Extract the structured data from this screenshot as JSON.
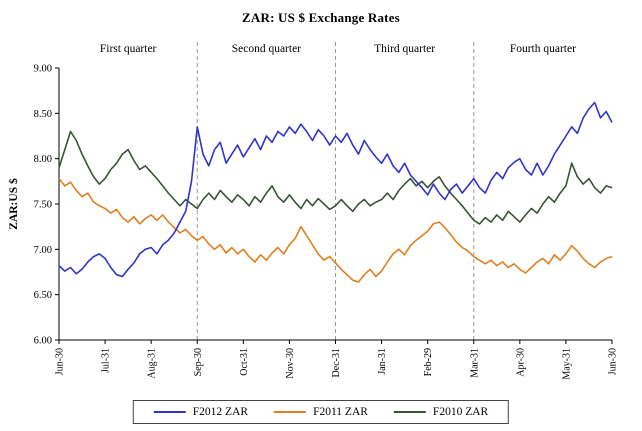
{
  "chart_data": {
    "type": "line",
    "title": "ZAR: US $ Exchange Rates",
    "ylabel": "ZAR:US $",
    "ylim": [
      6.0,
      9.0
    ],
    "y_tick_labels": [
      "6.00",
      "6.50",
      "7.00",
      "7.50",
      "8.00",
      "8.50",
      "9.00"
    ],
    "x_tick_labels": [
      "Jun-30",
      "Jul-31",
      "Aug-31",
      "Sep-30",
      "Oct-31",
      "Nov-30",
      "Dec-31",
      "Jan-31",
      "Feb-29",
      "Mar-31",
      "Apr-30",
      "May-31",
      "Jun-30"
    ],
    "quarter_labels": [
      "First quarter",
      "Second quarter",
      "Third quarter",
      "Fourth quarter"
    ],
    "quarter_dividers_month_index": [
      3,
      6,
      9
    ],
    "grid": "off",
    "legend_position": "bottom",
    "divider_color": "#999999",
    "axis_color": "#000000",
    "points_per_month": 8,
    "series": [
      {
        "name": "F2012 ZAR",
        "color": "#3333cc",
        "values": [
          6.82,
          6.76,
          6.8,
          6.73,
          6.78,
          6.86,
          6.92,
          6.95,
          6.9,
          6.8,
          6.72,
          6.7,
          6.78,
          6.85,
          6.95,
          7.0,
          7.02,
          6.95,
          7.05,
          7.1,
          7.18,
          7.3,
          7.42,
          7.75,
          8.35,
          8.05,
          7.92,
          8.1,
          8.18,
          7.95,
          8.05,
          8.15,
          8.02,
          8.12,
          8.22,
          8.1,
          8.25,
          8.18,
          8.3,
          8.25,
          8.35,
          8.28,
          8.38,
          8.3,
          8.2,
          8.32,
          8.25,
          8.15,
          8.25,
          8.18,
          8.28,
          8.15,
          8.05,
          8.2,
          8.1,
          8.02,
          7.95,
          8.05,
          7.92,
          7.85,
          7.95,
          7.82,
          7.75,
          7.68,
          7.6,
          7.72,
          7.62,
          7.55,
          7.66,
          7.72,
          7.62,
          7.7,
          7.78,
          7.68,
          7.62,
          7.76,
          7.85,
          7.78,
          7.9,
          7.96,
          8.0,
          7.88,
          7.82,
          7.95,
          7.82,
          7.92,
          8.05,
          8.15,
          8.25,
          8.35,
          8.28,
          8.45,
          8.55,
          8.62,
          8.45,
          8.52,
          8.4
        ]
      },
      {
        "name": "F2011 ZAR",
        "color": "#e07f1f",
        "values": [
          7.78,
          7.7,
          7.74,
          7.65,
          7.58,
          7.62,
          7.52,
          7.48,
          7.45,
          7.4,
          7.44,
          7.35,
          7.3,
          7.36,
          7.28,
          7.34,
          7.38,
          7.32,
          7.38,
          7.3,
          7.24,
          7.18,
          7.22,
          7.15,
          7.1,
          7.14,
          7.06,
          7.0,
          7.05,
          6.96,
          7.02,
          6.95,
          7.0,
          6.92,
          6.86,
          6.94,
          6.88,
          6.96,
          7.02,
          6.95,
          7.05,
          7.12,
          7.25,
          7.15,
          7.05,
          6.95,
          6.88,
          6.92,
          6.85,
          6.78,
          6.72,
          6.66,
          6.64,
          6.72,
          6.78,
          6.7,
          6.76,
          6.86,
          6.95,
          7.0,
          6.94,
          7.04,
          7.1,
          7.15,
          7.2,
          7.28,
          7.3,
          7.24,
          7.16,
          7.08,
          7.02,
          6.98,
          6.92,
          6.88,
          6.84,
          6.88,
          6.82,
          6.86,
          6.8,
          6.84,
          6.78,
          6.74,
          6.8,
          6.86,
          6.9,
          6.84,
          6.94,
          6.88,
          6.95,
          7.04,
          6.98,
          6.9,
          6.84,
          6.8,
          6.86,
          6.9,
          6.92
        ]
      },
      {
        "name": "F2010 ZAR",
        "color": "#3a5335",
        "values": [
          7.9,
          8.1,
          8.3,
          8.2,
          8.05,
          7.92,
          7.8,
          7.72,
          7.78,
          7.88,
          7.95,
          8.05,
          8.1,
          7.98,
          7.88,
          7.92,
          7.85,
          7.78,
          7.7,
          7.62,
          7.55,
          7.48,
          7.55,
          7.5,
          7.45,
          7.55,
          7.62,
          7.55,
          7.65,
          7.58,
          7.52,
          7.6,
          7.55,
          7.48,
          7.58,
          7.52,
          7.62,
          7.7,
          7.58,
          7.52,
          7.6,
          7.52,
          7.45,
          7.55,
          7.48,
          7.56,
          7.5,
          7.44,
          7.48,
          7.55,
          7.48,
          7.42,
          7.5,
          7.55,
          7.48,
          7.52,
          7.55,
          7.62,
          7.55,
          7.65,
          7.72,
          7.78,
          7.7,
          7.75,
          7.68,
          7.75,
          7.8,
          7.7,
          7.62,
          7.55,
          7.48,
          7.4,
          7.32,
          7.28,
          7.35,
          7.3,
          7.38,
          7.32,
          7.42,
          7.36,
          7.3,
          7.38,
          7.45,
          7.4,
          7.5,
          7.58,
          7.52,
          7.62,
          7.7,
          7.95,
          7.8,
          7.72,
          7.78,
          7.68,
          7.62,
          7.7,
          7.68
        ]
      }
    ]
  }
}
